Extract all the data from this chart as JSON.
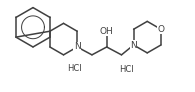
{
  "background_color": "#ffffff",
  "figure_width": 1.95,
  "figure_height": 0.92,
  "dpi": 100,
  "line_color": "#404040",
  "line_width": 1.1,
  "text_color": "#404040",
  "font_size_N": 6.5,
  "font_size_O": 6.5,
  "font_size_OH": 6.5,
  "font_size_HCl": 6.0,
  "xlim": [
    0,
    19.5
  ],
  "ylim": [
    0,
    9.2
  ]
}
